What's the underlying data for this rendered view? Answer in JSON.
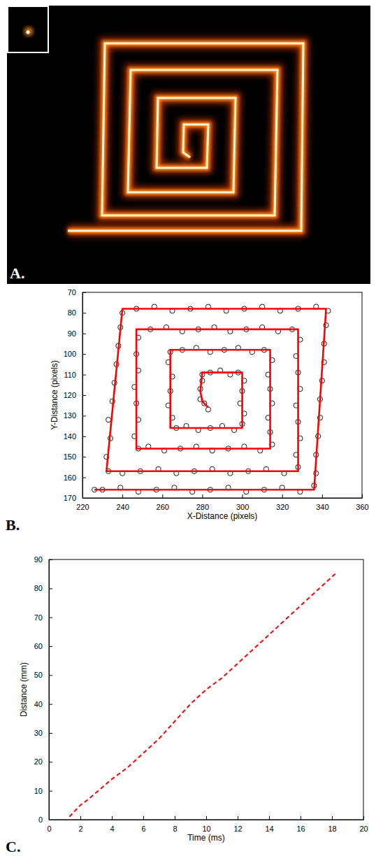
{
  "image": {
    "label": "A."
  },
  "chart_data": [
    {
      "type": "scatter",
      "title": "B.",
      "xlabel": "X-Distance (pixels)",
      "ylabel": "Y-Distance (pixels)",
      "xlim": [
        220,
        360
      ],
      "xticks": [
        220,
        240,
        260,
        280,
        300,
        320,
        340,
        360
      ],
      "ylim": [
        170,
        70
      ],
      "yticks": [
        70,
        80,
        90,
        100,
        110,
        120,
        130,
        140,
        150,
        160,
        170
      ],
      "series": [
        {
          "type": "scatter",
          "marker": "circle",
          "color": "#000000",
          "x": [
            283,
            281,
            279,
            279,
            280,
            280,
            284,
            289,
            294,
            298,
            301,
            300,
            299,
            301,
            300,
            296,
            290,
            284,
            278,
            272,
            267,
            265,
            263,
            264,
            265,
            263,
            264,
            270,
            277,
            284,
            291,
            298,
            305,
            311,
            315,
            313,
            314,
            315,
            313,
            314,
            315,
            309,
            301,
            293,
            285,
            277,
            269,
            261,
            253,
            248,
            246,
            248,
            247,
            246,
            248,
            247,
            248,
            254,
            262,
            270,
            278,
            286,
            294,
            302,
            310,
            318,
            325,
            329,
            327,
            328,
            329,
            327,
            328,
            329,
            327,
            328,
            321,
            312,
            303,
            294,
            285,
            276,
            267,
            258,
            249,
            240,
            233,
            232,
            234,
            233,
            235,
            236,
            237,
            238,
            239,
            240,
            247,
            256,
            265,
            274,
            283,
            292,
            301,
            310,
            319,
            328,
            337,
            343,
            342,
            341,
            341,
            340,
            339,
            339,
            338,
            337,
            337,
            336,
            329,
            320,
            311,
            302,
            293,
            284,
            275,
            266,
            257,
            248,
            239,
            230,
            226
          ],
          "values": [
            127,
            124,
            122,
            117,
            113,
            110,
            109,
            108,
            110,
            109,
            113,
            118,
            124,
            129,
            134,
            137,
            135,
            136,
            137,
            135,
            136,
            131,
            125,
            118,
            111,
            104,
            99,
            98,
            97,
            99,
            98,
            97,
            99,
            98,
            103,
            110,
            117,
            124,
            131,
            138,
            144,
            147,
            145,
            146,
            147,
            145,
            146,
            147,
            145,
            146,
            140,
            132,
            124,
            116,
            108,
            100,
            92,
            88,
            87,
            89,
            88,
            87,
            89,
            88,
            87,
            89,
            88,
            93,
            101,
            109,
            117,
            125,
            133,
            141,
            149,
            155,
            158,
            156,
            157,
            158,
            156,
            157,
            158,
            156,
            157,
            158,
            157,
            150,
            141,
            132,
            123,
            114,
            105,
            96,
            87,
            80,
            78,
            77,
            79,
            78,
            77,
            79,
            78,
            77,
            79,
            78,
            77,
            79,
            86,
            95,
            104,
            113,
            122,
            131,
            140,
            149,
            158,
            164,
            167,
            165,
            166,
            167,
            165,
            166,
            167,
            165,
            166,
            167,
            165,
            166,
            166
          ]
        },
        {
          "type": "line",
          "line_style": "solid",
          "color": "#ff0000",
          "x": [
            283,
            280,
            279,
            280,
            300,
            300,
            264,
            264,
            314,
            314,
            247,
            247,
            328,
            328,
            232,
            240,
            342,
            336,
            226
          ],
          "values": [
            126,
            123,
            118,
            109,
            109,
            136,
            136,
            98,
            98,
            146,
            146,
            88,
            88,
            157,
            157,
            78,
            78,
            166,
            166
          ]
        }
      ]
    },
    {
      "type": "line",
      "title": "C.",
      "xlabel": "Time (ms)",
      "ylabel": "Distance (mm)",
      "xlim": [
        0,
        20
      ],
      "xticks": [
        0,
        2,
        4,
        6,
        8,
        10,
        12,
        14,
        16,
        18,
        20
      ],
      "ylim": [
        0,
        90
      ],
      "yticks": [
        0,
        10,
        20,
        30,
        40,
        50,
        60,
        70,
        80,
        90
      ],
      "series": [
        {
          "type": "line",
          "line_style": "dashed",
          "color": "#ff0000",
          "x": [
            1.3,
            2,
            2.5,
            4,
            5,
            6,
            7,
            8,
            9,
            10,
            11,
            12,
            13,
            14,
            15,
            16,
            17,
            18,
            18.3
          ],
          "values": [
            1,
            5,
            7,
            14,
            18,
            23,
            28,
            34,
            40,
            45,
            49,
            54,
            59,
            64,
            69,
            74,
            79,
            84,
            85.5
          ]
        }
      ]
    }
  ]
}
